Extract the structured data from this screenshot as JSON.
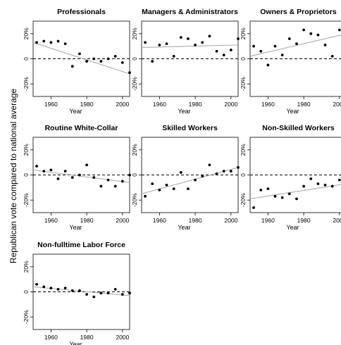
{
  "chart_data": {
    "type": "scatter",
    "ylabel": "Republican vote compared to national average",
    "xlabel": "Year",
    "xlim": [
      1950,
      2004
    ],
    "ylim": [
      -30,
      30
    ],
    "x_ticks": [
      1960,
      1980,
      2000
    ],
    "y_ticks": [
      20,
      0,
      -20
    ],
    "y_tick_labels": [
      "20%",
      "0",
      "-20%"
    ],
    "zero_reference": "dashed",
    "trend_line": "solid gray",
    "panels": [
      {
        "title": "Professionals",
        "trend": [
          [
            1950,
            13
          ],
          [
            2004,
            -12
          ]
        ],
        "points": [
          [
            1952,
            13
          ],
          [
            1956,
            14
          ],
          [
            1960,
            13
          ],
          [
            1964,
            14
          ],
          [
            1968,
            12
          ],
          [
            1972,
            -6
          ],
          [
            1976,
            4
          ],
          [
            1980,
            -2
          ],
          [
            1984,
            0
          ],
          [
            1988,
            -2
          ],
          [
            1992,
            0
          ],
          [
            1996,
            2
          ],
          [
            2000,
            -3
          ],
          [
            2004,
            -11
          ]
        ]
      },
      {
        "title": "Managers & Administrators",
        "trend": [
          [
            1950,
            9
          ],
          [
            2004,
            11
          ]
        ],
        "points": [
          [
            1952,
            13
          ],
          [
            1956,
            -2
          ],
          [
            1960,
            11
          ],
          [
            1964,
            12
          ],
          [
            1968,
            2
          ],
          [
            1972,
            17
          ],
          [
            1976,
            16
          ],
          [
            1980,
            11
          ],
          [
            1984,
            13
          ],
          [
            1988,
            18
          ],
          [
            1992,
            6
          ],
          [
            1996,
            3
          ],
          [
            2000,
            7
          ],
          [
            2004,
            16
          ]
        ]
      },
      {
        "title": "Owners & Proprietors",
        "trend": [
          [
            1950,
            2
          ],
          [
            2004,
            20
          ]
        ],
        "points": [
          [
            1952,
            10
          ],
          [
            1956,
            6
          ],
          [
            1960,
            -5
          ],
          [
            1964,
            10
          ],
          [
            1968,
            3
          ],
          [
            1972,
            16
          ],
          [
            1976,
            12
          ],
          [
            1980,
            23
          ],
          [
            1984,
            20
          ],
          [
            1988,
            19
          ],
          [
            1992,
            11
          ],
          [
            1996,
            2
          ],
          [
            2000,
            23
          ],
          [
            2004,
            24
          ]
        ]
      },
      {
        "title": "Routine White-Collar",
        "trend": [
          [
            1950,
            4
          ],
          [
            2004,
            -6
          ]
        ],
        "points": [
          [
            1952,
            7
          ],
          [
            1956,
            3
          ],
          [
            1960,
            4
          ],
          [
            1964,
            -3
          ],
          [
            1968,
            3
          ],
          [
            1972,
            -2
          ],
          [
            1976,
            0
          ],
          [
            1980,
            8
          ],
          [
            1984,
            -2
          ],
          [
            1988,
            -9
          ],
          [
            1992,
            -4
          ],
          [
            1996,
            -9
          ],
          [
            2000,
            -5
          ],
          [
            2004,
            0
          ]
        ]
      },
      {
        "title": "Skilled Workers",
        "trend": [
          [
            1950,
            -15
          ],
          [
            2004,
            6
          ]
        ],
        "points": [
          [
            1952,
            -17
          ],
          [
            1956,
            -7
          ],
          [
            1960,
            -12
          ],
          [
            1964,
            -8
          ],
          [
            1968,
            -11
          ],
          [
            1972,
            2
          ],
          [
            1976,
            -11
          ],
          [
            1980,
            -4
          ],
          [
            1984,
            -1
          ],
          [
            1988,
            8
          ],
          [
            1992,
            1
          ],
          [
            1996,
            3
          ],
          [
            2000,
            3
          ],
          [
            2004,
            6
          ]
        ]
      },
      {
        "title": "Non-Skilled Workers",
        "trend": [
          [
            1950,
            -19
          ],
          [
            2004,
            -7
          ]
        ],
        "points": [
          [
            1952,
            -26
          ],
          [
            1956,
            -12
          ],
          [
            1960,
            -11
          ],
          [
            1964,
            -17
          ],
          [
            1968,
            -18
          ],
          [
            1972,
            -15
          ],
          [
            1976,
            -19
          ],
          [
            1980,
            -9
          ],
          [
            1984,
            -3
          ],
          [
            1988,
            -7
          ],
          [
            1992,
            -8
          ],
          [
            1996,
            -9
          ],
          [
            2000,
            -4
          ],
          [
            2004,
            -10
          ]
        ]
      },
      {
        "title": "Non-fulltime Labor Force",
        "trend": [
          [
            1950,
            4
          ],
          [
            2004,
            -3
          ]
        ],
        "points": [
          [
            1952,
            6
          ],
          [
            1956,
            4
          ],
          [
            1960,
            3
          ],
          [
            1964,
            2
          ],
          [
            1968,
            3
          ],
          [
            1972,
            1
          ],
          [
            1976,
            1
          ],
          [
            1980,
            -2
          ],
          [
            1984,
            -4
          ],
          [
            1988,
            -1
          ],
          [
            1992,
            -1
          ],
          [
            1996,
            2
          ],
          [
            2000,
            -2
          ],
          [
            2004,
            -1
          ]
        ]
      }
    ]
  }
}
